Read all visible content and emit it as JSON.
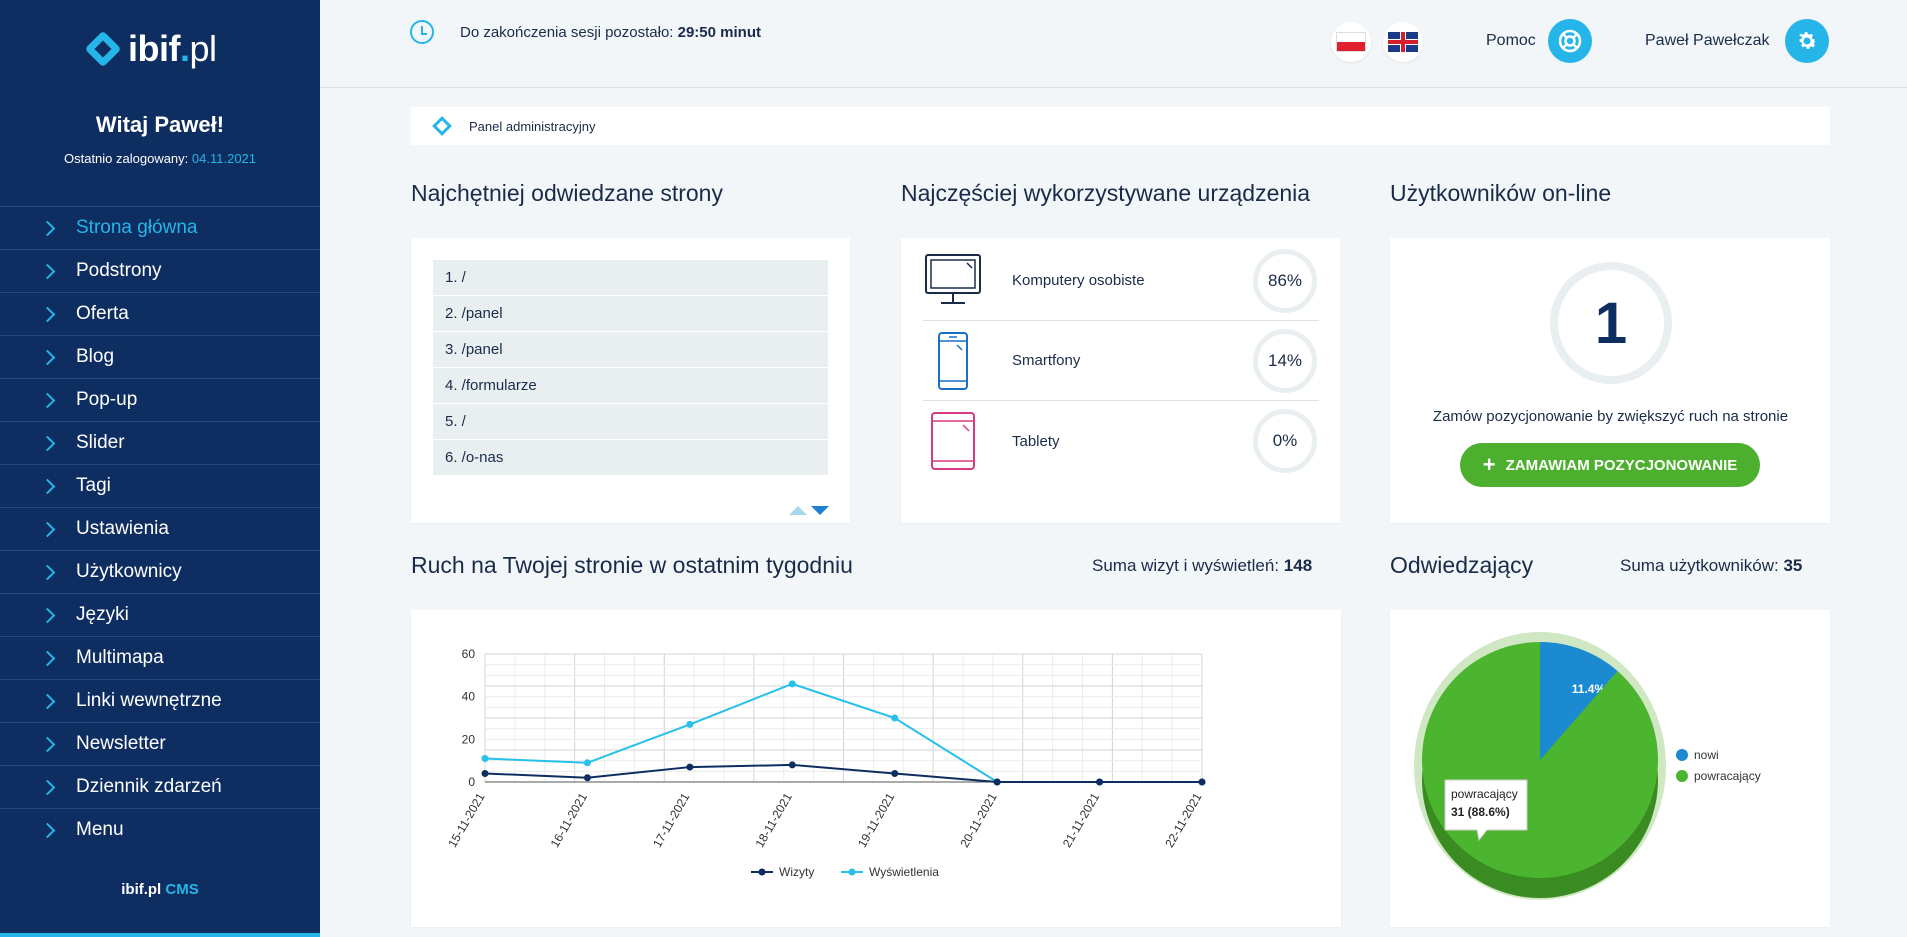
{
  "sidebar": {
    "logo_main": "ibif",
    "logo_dot": ".",
    "logo_pl": "pl",
    "welcome": "Witaj Paweł!",
    "last_login_label": "Ostatnio zalogowany:",
    "last_login_date": "04.11.2021",
    "items": [
      {
        "label": "Strona główna"
      },
      {
        "label": "Podstrony"
      },
      {
        "label": "Oferta"
      },
      {
        "label": "Blog"
      },
      {
        "label": "Pop-up"
      },
      {
        "label": "Slider"
      },
      {
        "label": "Tagi"
      },
      {
        "label": "Ustawienia"
      },
      {
        "label": "Użytkownicy"
      },
      {
        "label": "Języki"
      },
      {
        "label": "Multimapa"
      },
      {
        "label": "Linki wewnętrzne"
      },
      {
        "label": "Newsletter"
      },
      {
        "label": "Dziennik zdarzeń"
      },
      {
        "label": "Menu"
      }
    ],
    "footer_brand": "ibif.pl",
    "footer_cms": "CMS"
  },
  "header": {
    "session_label": "Do zakończenia sesji pozostało:",
    "session_time": "29:50 minut",
    "help_label": "Pomoc",
    "user_name": "Paweł Pawełczak"
  },
  "breadcrumb": {
    "label": "Panel administracyjny"
  },
  "top_pages": {
    "title": "Najchętniej odwiedzane strony",
    "items": [
      "1. /",
      "2. /panel",
      "3. /panel",
      "4. /formularze",
      "5. /",
      "6. /o-nas"
    ]
  },
  "devices": {
    "title": "Najczęściej wykorzystywane urządzenia",
    "items": [
      {
        "label": "Komputery osobiste",
        "percent": "86%",
        "icon": "desktop-icon"
      },
      {
        "label": "Smartfony",
        "percent": "14%",
        "icon": "smartphone-icon"
      },
      {
        "label": "Tablety",
        "percent": "0%",
        "icon": "tablet-icon"
      }
    ]
  },
  "online": {
    "title": "Użytkowników on-line",
    "count": "1",
    "text": "Zamów pozycjonowanie by zwiększyć ruch na stronie",
    "button": "ZAMAWIAM POZYCJONOWANIE"
  },
  "traffic": {
    "title": "Ruch na Twojej stronie w ostatnim tygodniu",
    "sum_label": "Suma wizyt i wyświetleń:",
    "sum_value": "148"
  },
  "visitors": {
    "title": "Odwiedzający",
    "sum_label": "Suma użytkowników:",
    "sum_value": "35"
  },
  "colors": {
    "accent": "#26b5e8",
    "sidebar": "#0e2d60",
    "green": "#4caf2d",
    "visits_series": "#0e2d60",
    "views_series": "#26c0ea",
    "new_slice": "#1b8ad0",
    "returning_slice": "#4cb52f"
  },
  "chart_data": [
    {
      "type": "line",
      "x": [
        "15-11-2021",
        "16-11-2021",
        "17-11-2021",
        "18-11-2021",
        "19-11-2021",
        "20-11-2021",
        "21-11-2021",
        "22-11-2021"
      ],
      "series": [
        {
          "name": "Wizyty",
          "values": [
            4,
            2,
            7,
            8,
            4,
            0,
            0,
            0
          ]
        },
        {
          "name": "Wyświetlenia",
          "values": [
            11,
            9,
            27,
            46,
            30,
            0,
            0,
            0
          ]
        }
      ],
      "yticks": [
        "60",
        "40",
        "20",
        "0"
      ],
      "ylim": [
        0,
        60
      ],
      "grid": true,
      "legend": "bottom"
    },
    {
      "type": "pie",
      "slices": [
        {
          "name": "nowi",
          "value": 4,
          "percent_label": "11.4%"
        },
        {
          "name": "powracający",
          "value": 31,
          "percent_label": "88.6%"
        }
      ],
      "tooltip_name": "powracający",
      "tooltip_value": "31 (88.6%)",
      "legend": "right"
    }
  ]
}
